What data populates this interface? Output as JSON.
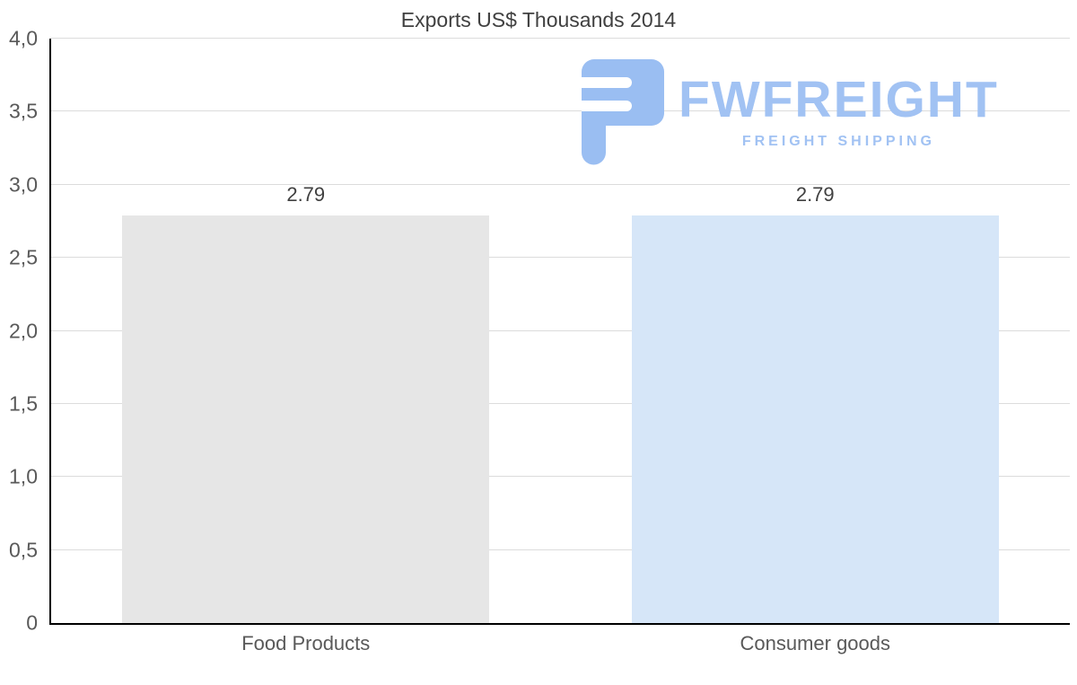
{
  "page": {
    "background": "#ffffff"
  },
  "chart_data": {
    "type": "bar",
    "title": "Exports US$ Thousands 2014",
    "categories": [
      "Food Products",
      "Consumer goods"
    ],
    "values": [
      2.79,
      2.79
    ],
    "value_labels": [
      "2.79",
      "2.79"
    ],
    "series_colors": [
      "#e6e6e6",
      "#d6e6f8"
    ],
    "ylim": [
      0,
      4
    ],
    "ytick_step": 0.5,
    "ytick_labels": [
      "0",
      "0,5",
      "1,0",
      "1,5",
      "2,0",
      "2,5",
      "3,0",
      "3,5",
      "4,0"
    ],
    "grid": true,
    "legend": "none",
    "xlabel": "",
    "ylabel": ""
  },
  "watermark": {
    "brand": "FWFREIGHT",
    "tagline": "FREIGHT SHIPPING",
    "text_color": "#a1c2f3",
    "icon_color": "#9abef2"
  },
  "style": {
    "title_color": "#404040",
    "axis_color": "#000000",
    "gridline_color": "#dcdcdc",
    "tick_label_color": "#595959",
    "value_label_color": "#404040"
  }
}
